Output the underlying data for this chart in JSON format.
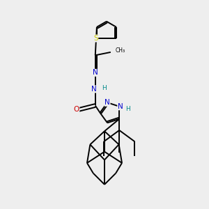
{
  "background_color": "#eeeeee",
  "atom_colors": {
    "C": "#000000",
    "N": "#0000cc",
    "O": "#cc0000",
    "S": "#cccc00",
    "H": "#008888"
  },
  "lw": 1.4,
  "fs": 7.5,
  "fsh": 6.5
}
